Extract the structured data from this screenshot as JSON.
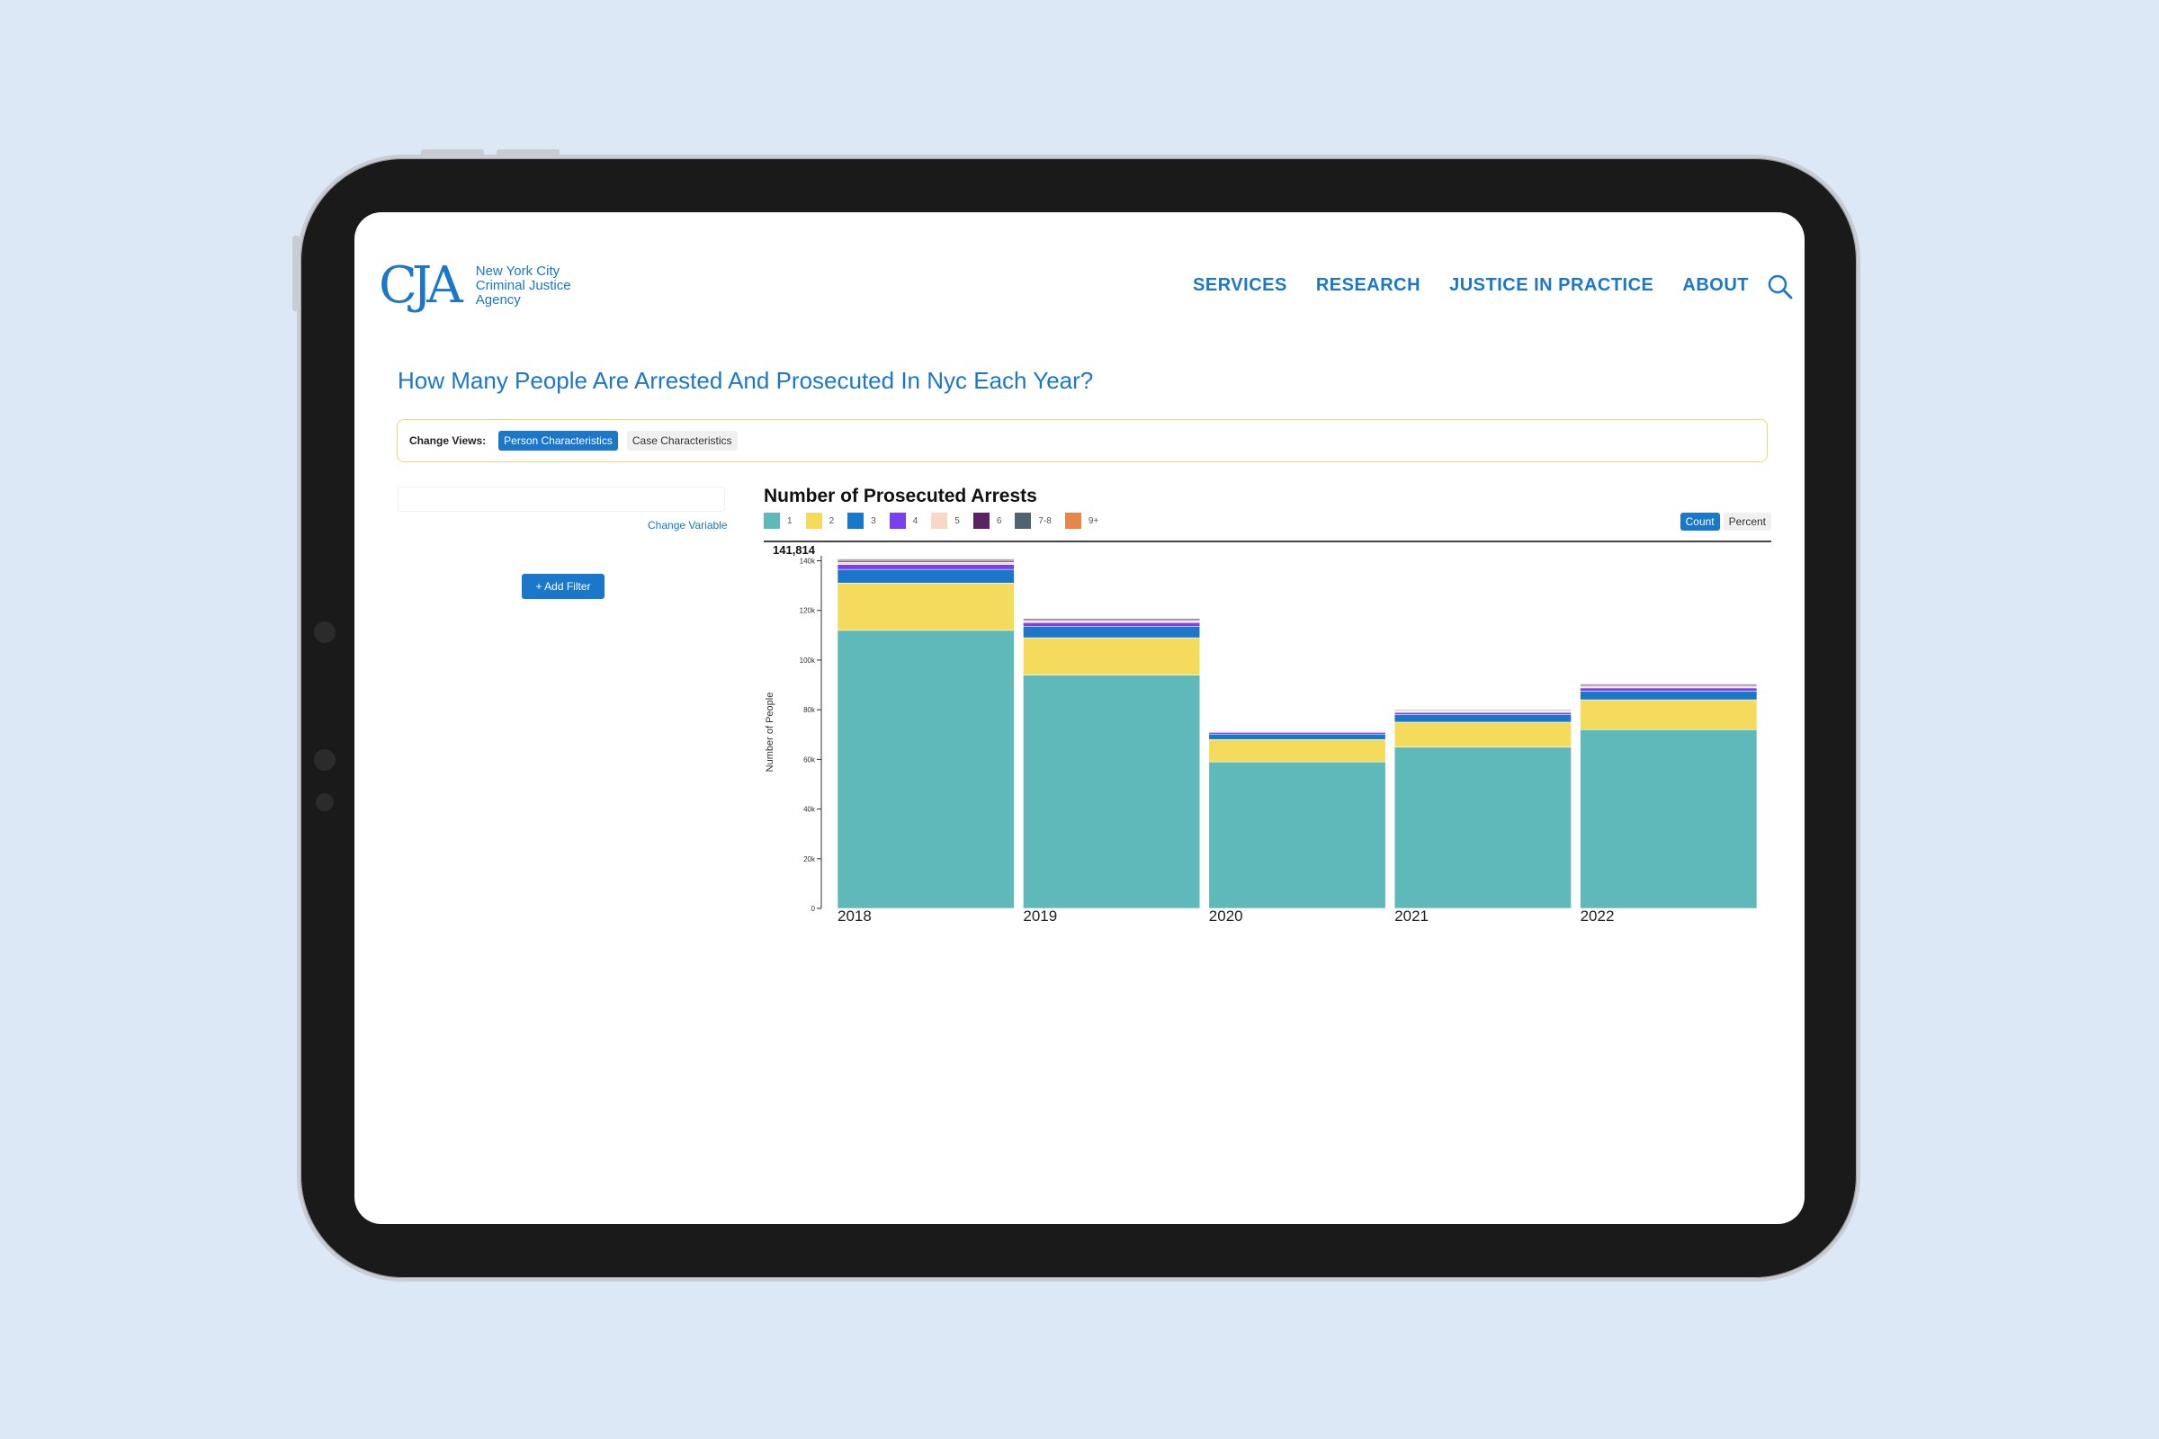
{
  "logo": {
    "mark": "CJA",
    "text": "New York City\nCriminal Justice\nAgency"
  },
  "nav": [
    "SERVICES",
    "RESEARCH",
    "JUSTICE IN PRACTICE",
    "ABOUT"
  ],
  "page_title": "How Many People Are Arrested And Prosecuted In Nyc Each Year?",
  "views": {
    "label": "Change Views:",
    "active": "Person Characteristics",
    "inactive": "Case Characteristics"
  },
  "left_panel": {
    "change_variable": "Change Variable",
    "add_filter": "+ Add Filter"
  },
  "toggle": {
    "count": "Count",
    "percent": "Percent"
  },
  "colors": {
    "accent": "#1a77c9",
    "s1": "#5fb8ba",
    "s2": "#f4db5b",
    "s3": "#1a77c9",
    "s4": "#7b3ff0",
    "s5": "#f6d8c4",
    "s6": "#5a2366",
    "s78": "#4f6470",
    "s9": "#e5874a"
  },
  "chart_data": {
    "type": "bar",
    "stacked": true,
    "title": "Number of Prosecuted Arrests",
    "ylabel": "Number of People",
    "max_label": "141,814",
    "ylim": [
      0,
      142000
    ],
    "yticks": [
      0,
      20000,
      40000,
      60000,
      80000,
      100000,
      120000,
      140000
    ],
    "ytick_labels": [
      "0",
      "20k",
      "40k",
      "60k",
      "80k",
      "100k",
      "120k",
      "140k"
    ],
    "categories": [
      "2018",
      "2019",
      "2020",
      "2021",
      "2022"
    ],
    "legend": [
      "1",
      "2",
      "3",
      "4",
      "5",
      "6",
      "7-8",
      "9+"
    ],
    "series": [
      {
        "name": "1",
        "color": "#5fb8ba",
        "values": [
          112000,
          94000,
          59000,
          65000,
          72000
        ]
      },
      {
        "name": "2",
        "color": "#f4db5b",
        "values": [
          19000,
          15000,
          9000,
          10000,
          12000
        ]
      },
      {
        "name": "3",
        "color": "#1a77c9",
        "values": [
          5500,
          4500,
          2200,
          3000,
          3500
        ]
      },
      {
        "name": "4",
        "color": "#7b3ff0",
        "values": [
          2000,
          1600,
          700,
          900,
          1300
        ]
      },
      {
        "name": "5",
        "color": "#f6d8c4",
        "values": [
          900,
          700,
          300,
          500,
          700
        ]
      },
      {
        "name": "6",
        "color": "#5a2366",
        "values": [
          500,
          400,
          150,
          250,
          400
        ]
      },
      {
        "name": "7-8",
        "color": "#4f6470",
        "values": [
          600,
          500,
          250,
          350,
          500
        ]
      },
      {
        "name": "9+",
        "color": "#e5874a",
        "values": [
          300,
          250,
          100,
          150,
          250
        ]
      }
    ]
  }
}
